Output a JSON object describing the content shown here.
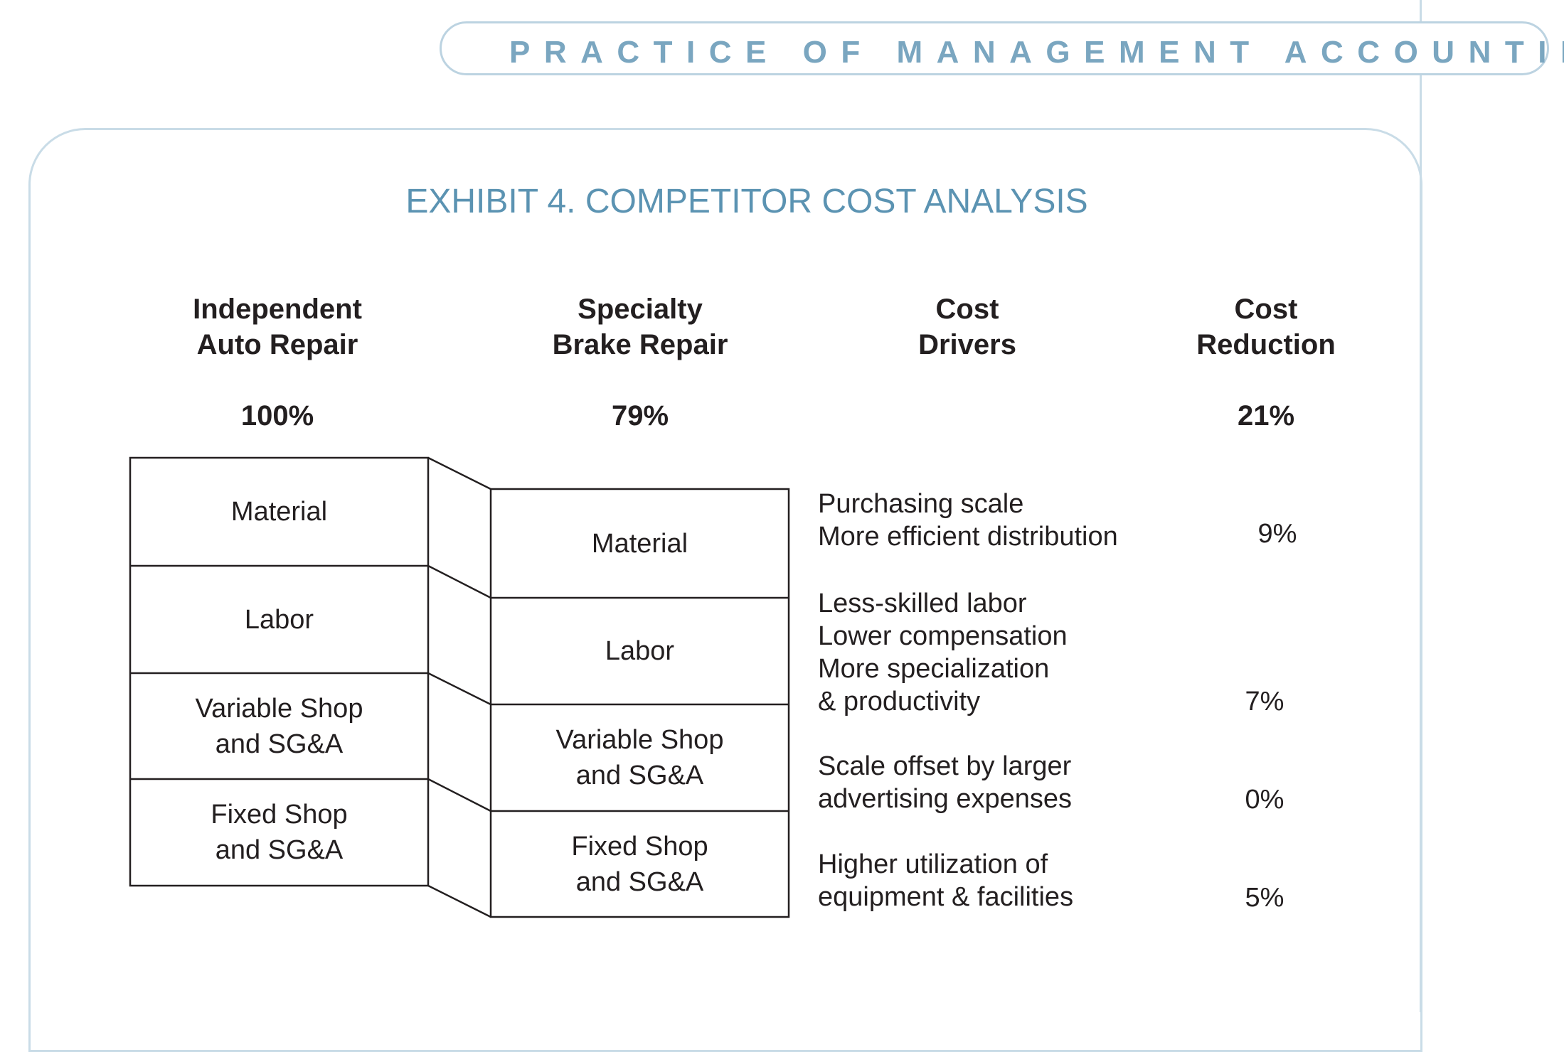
{
  "header": {
    "running_title": "PRACTICE OF MANAGEMENT ACCOUNTING"
  },
  "exhibit": {
    "title": "EXHIBIT 4. COMPETITOR COST ANALYSIS"
  },
  "columns": {
    "independent": {
      "line1": "Independent",
      "line2": "Auto Repair",
      "total": "100%"
    },
    "specialty": {
      "line1": "Specialty",
      "line2": "Brake Repair",
      "total": "79%"
    },
    "drivers": {
      "line1": "Cost",
      "line2": "Drivers"
    },
    "reduction": {
      "line1": "Cost",
      "line2": "Reduction",
      "total": "21%"
    }
  },
  "segments": {
    "independent": [
      "Material",
      "Labor",
      "Variable Shop\nand SG&A",
      "Fixed Shop\nand SG&A"
    ],
    "specialty": [
      "Material",
      "Labor",
      "Variable Shop\nand SG&A",
      "Fixed Shop\nand SG&A"
    ]
  },
  "drivers": [
    {
      "text": "Purchasing scale\nMore efficient distribution",
      "reduction": "9%"
    },
    {
      "text": "Less-skilled labor\nLower compensation\nMore specialization\n& productivity",
      "reduction": "7%"
    },
    {
      "text": "Scale offset by larger\nadvertising expenses",
      "reduction": "0%"
    },
    {
      "text": "Higher utilization of\nequipment & facilities",
      "reduction": "5%"
    }
  ],
  "colors": {
    "accent": "#5b93b2",
    "header": "#7aa6c0",
    "frame": "#c9dce7",
    "ink": "#231f20"
  }
}
